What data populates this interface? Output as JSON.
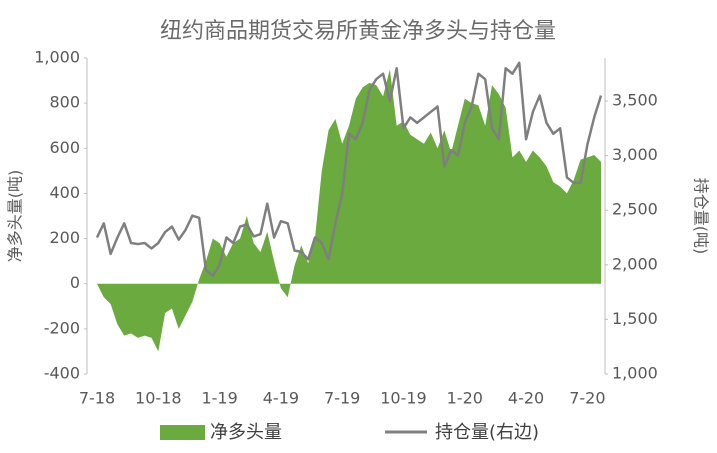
{
  "chart_data": {
    "type": "area-line",
    "title": "纽约商品期货交易所黄金净多头与持仓量",
    "y_label": "净多头量(吨)",
    "y2_label": "持仓量(吨)",
    "categories": [
      "7-18",
      null,
      null,
      null,
      null,
      null,
      null,
      null,
      null,
      "10-18",
      null,
      null,
      null,
      null,
      null,
      null,
      null,
      null,
      "1-19",
      null,
      null,
      null,
      null,
      null,
      null,
      null,
      null,
      "4-19",
      null,
      null,
      null,
      null,
      null,
      null,
      null,
      null,
      "7-19",
      null,
      null,
      null,
      null,
      null,
      null,
      null,
      null,
      "10-19",
      null,
      null,
      null,
      null,
      null,
      null,
      null,
      null,
      "1-20",
      null,
      null,
      null,
      null,
      null,
      null,
      null,
      null,
      "4-20",
      null,
      null,
      null,
      null,
      null,
      null,
      null,
      null,
      "7-20",
      null,
      null
    ],
    "series": [
      {
        "name": "净多头量",
        "color": "#6aaa3e",
        "kind": "area",
        "values": [
          0,
          -60,
          -90,
          -180,
          -230,
          -220,
          -240,
          -230,
          -240,
          -300,
          -130,
          -110,
          -200,
          -140,
          -80,
          20,
          100,
          200,
          180,
          120,
          180,
          200,
          300,
          180,
          140,
          230,
          100,
          -20,
          -60,
          80,
          170,
          90,
          200,
          500,
          680,
          730,
          620,
          700,
          820,
          870,
          890,
          880,
          830,
          950,
          700,
          720,
          660,
          640,
          620,
          670,
          600,
          680,
          580,
          700,
          820,
          800,
          790,
          700,
          880,
          840,
          780,
          560,
          590,
          540,
          590,
          560,
          520,
          450,
          430,
          400,
          460,
          550,
          560,
          570,
          540
        ]
      },
      {
        "name": "持仓量(右边)",
        "color": "#7f7f7f",
        "kind": "line",
        "axis": "y2",
        "values": [
          2250,
          2380,
          2100,
          2250,
          2380,
          2200,
          2190,
          2200,
          2150,
          2200,
          2300,
          2350,
          2230,
          2320,
          2450,
          2430,
          1950,
          1900,
          2000,
          2250,
          2200,
          2350,
          2370,
          2260,
          2280,
          2560,
          2250,
          2400,
          2380,
          2130,
          2120,
          2050,
          2250,
          2200,
          2050,
          2380,
          2650,
          3200,
          3150,
          3300,
          3600,
          3700,
          3750,
          3500,
          3800,
          3250,
          3350,
          3300,
          3350,
          3400,
          3450,
          2900,
          3050,
          3000,
          3300,
          3450,
          3750,
          3700,
          3250,
          3150,
          3800,
          3750,
          3850,
          3150,
          3400,
          3550,
          3300,
          3200,
          3250,
          2800,
          2750,
          2750,
          3100,
          3350,
          3550
        ]
      }
    ],
    "ylim": [
      -400,
      1000
    ],
    "yticks": [
      {
        "value": -400,
        "label": "-400"
      },
      {
        "value": -200,
        "label": "-200"
      },
      0,
      200,
      400,
      600,
      800,
      {
        "value": 1000,
        "label": "1,000"
      }
    ],
    "y2lim": [
      1000,
      3894
    ],
    "y2ticks": [
      {
        "value": 1000,
        "label": "1,000"
      },
      {
        "value": 1500,
        "label": "1,500"
      },
      {
        "value": 2000,
        "label": "2,000"
      },
      {
        "value": 2500,
        "label": "2,500"
      },
      {
        "value": 3000,
        "label": "3,000"
      },
      {
        "value": 3500,
        "label": "3,500"
      }
    ],
    "grid": false,
    "legend": "bottom"
  }
}
